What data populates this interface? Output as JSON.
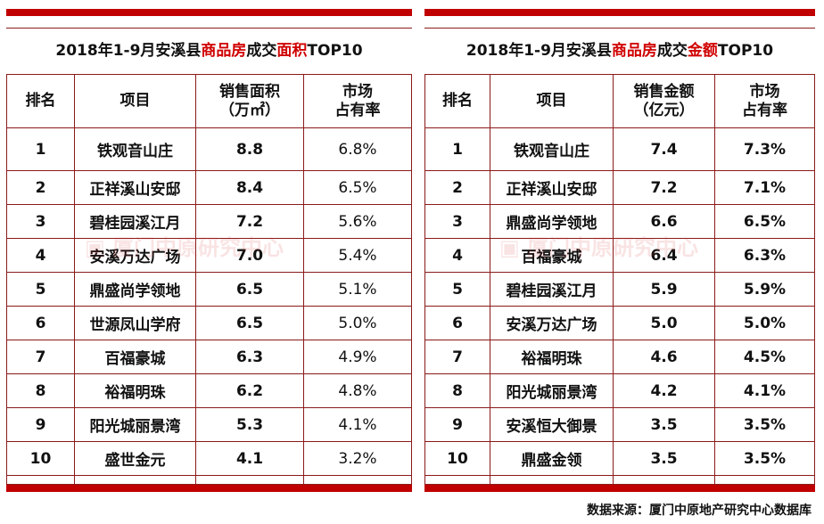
{
  "left": {
    "title_parts": [
      "2018年1-9月安溪县",
      "商品房",
      "成交",
      "面积",
      "TOP10"
    ],
    "headers": [
      "排名",
      "项目",
      "销售面积\n（万㎡）",
      "市场\n占有率"
    ],
    "rows": [
      [
        "1",
        "铁观音山庄",
        "8.8",
        "6.8%"
      ],
      [
        "2",
        "正祥溪山安邸",
        "8.4",
        "6.5%"
      ],
      [
        "3",
        "碧桂园溪江月",
        "7.2",
        "5.6%"
      ],
      [
        "4",
        "安溪万达广场",
        "7.0",
        "5.4%"
      ],
      [
        "5",
        "鼎盛尚学领地",
        "6.5",
        "5.1%"
      ],
      [
        "6",
        "世源凤山学府",
        "6.5",
        "5.0%"
      ],
      [
        "7",
        "百福豪城",
        "6.3",
        "4.9%"
      ],
      [
        "8",
        "裕福明珠",
        "6.2",
        "4.8%"
      ],
      [
        "9",
        "阳光城丽景湾",
        "5.3",
        "4.1%"
      ],
      [
        "10",
        "盛世金元",
        "4.1",
        "3.2%"
      ]
    ]
  },
  "right": {
    "title_parts": [
      "2018年1-9月安溪县",
      "商品房",
      "成交",
      "金额",
      "TOP10"
    ],
    "headers": [
      "排名",
      "项目",
      "销售金额\n（亿元）",
      "市场\n占有率"
    ],
    "rows": [
      [
        "1",
        "铁观音山庄",
        "7.4",
        "7.3%"
      ],
      [
        "2",
        "正祥溪山安邸",
        "7.2",
        "7.1%"
      ],
      [
        "3",
        "鼎盛尚学领地",
        "6.6",
        "6.5%"
      ],
      [
        "4",
        "百福豪城",
        "6.4",
        "6.3%"
      ],
      [
        "5",
        "碧桂园溪江月",
        "5.9",
        "5.9%"
      ],
      [
        "6",
        "安溪万达广场",
        "5.0",
        "5.0%"
      ],
      [
        "7",
        "裕福明珠",
        "4.6",
        "4.5%"
      ],
      [
        "8",
        "阳光城丽景湾",
        "4.2",
        "4.1%"
      ],
      [
        "9",
        "安溪恒大御景",
        "3.5",
        "3.5%"
      ],
      [
        "10",
        "鼎盛金领",
        "3.5",
        "3.5%"
      ]
    ]
  },
  "watermark": "厦门中原研究中心",
  "source": "数据来源：厦门中原地产研究中心数据库",
  "colors": {
    "accent": "#c00000",
    "border": "#8b1a1a"
  }
}
